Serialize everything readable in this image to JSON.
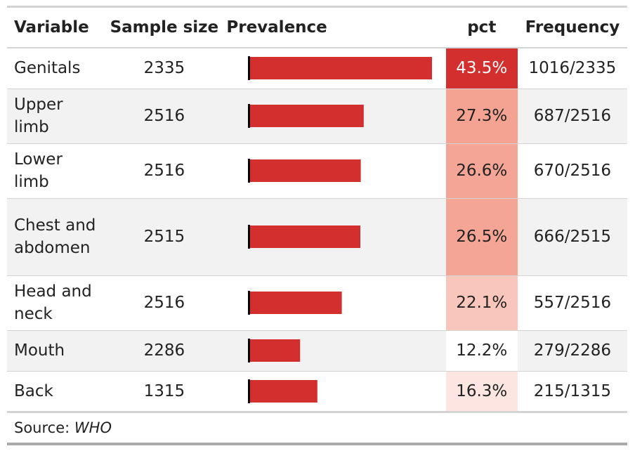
{
  "columns": {
    "variable": "Variable",
    "sample_size": "Sample size",
    "prevalence": "Prevalence",
    "pct": "pct",
    "frequency": "Frequency"
  },
  "rows": [
    {
      "variable": "Genitals",
      "sample_size": "2335",
      "pct_label": "43.5%",
      "frequency": "1016/2335",
      "pct_color": "#d32f2f",
      "pct_text_color": "#ffffff"
    },
    {
      "variable": "Upper limb",
      "sample_size": "2516",
      "pct_label": "27.3%",
      "frequency": "687/2516",
      "pct_color": "#f4a392",
      "pct_text_color": "#222222"
    },
    {
      "variable": "Lower limb",
      "sample_size": "2516",
      "pct_label": "26.6%",
      "frequency": "670/2516",
      "pct_color": "#f4a596",
      "pct_text_color": "#222222"
    },
    {
      "variable": "Chest and abdomen",
      "sample_size": "2515",
      "pct_label": "26.5%",
      "frequency": "666/2515",
      "pct_color": "#f4a596",
      "pct_text_color": "#222222"
    },
    {
      "variable": "Head and neck",
      "sample_size": "2516",
      "pct_label": "22.1%",
      "frequency": "557/2516",
      "pct_color": "#f9c6bc",
      "pct_text_color": "#222222"
    },
    {
      "variable": "Mouth",
      "sample_size": "2286",
      "pct_label": "12.2%",
      "frequency": "279/2286",
      "pct_color": "#ffffff",
      "pct_text_color": "#222222"
    },
    {
      "variable": "Back",
      "sample_size": "1315",
      "pct_label": "16.3%",
      "frequency": "215/1315",
      "pct_color": "#fde6e1",
      "pct_text_color": "#222222"
    }
  ],
  "source": {
    "label": "Source:",
    "value": "WHO"
  },
  "bar_color": "#d32f2f",
  "chart_data": {
    "type": "bar",
    "orientation": "horizontal",
    "categories": [
      "Genitals",
      "Upper limb",
      "Lower limb",
      "Chest and abdomen",
      "Head and neck",
      "Mouth",
      "Back"
    ],
    "values": [
      43.5,
      27.3,
      26.6,
      26.5,
      22.1,
      12.2,
      16.3
    ],
    "xlim": [
      0,
      44
    ],
    "title": "",
    "xlabel": "",
    "ylabel": ""
  }
}
